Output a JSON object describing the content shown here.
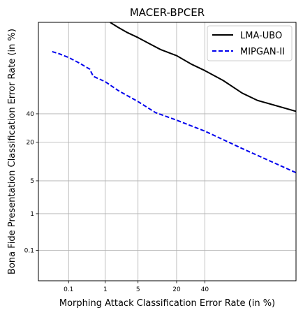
{
  "chart_data": {
    "type": "line",
    "title": "MACER-BPCER",
    "xlabel": "Morphing Attack Classification Error Rate (in %)",
    "ylabel": "Bona Fide Presentation Classification Error Rate (in %)",
    "x_scale": "probit",
    "y_scale": "probit",
    "x_ticks": [
      0.1,
      1,
      5,
      20,
      40
    ],
    "x_tick_labels": [
      "0.1",
      "1",
      "5",
      "20",
      "40"
    ],
    "y_ticks": [
      0.1,
      1,
      5,
      20,
      40
    ],
    "y_tick_labels": [
      "0.1",
      "1",
      "5",
      "20",
      "40"
    ],
    "xlim": [
      0.01,
      95
    ],
    "ylim": [
      0.01,
      95
    ],
    "grid": true,
    "legend_position": "top-right",
    "series": [
      {
        "name": "LMA-UBO",
        "color": "#000000",
        "style": "solid",
        "x": [
          1.3,
          2,
          3,
          5,
          8,
          12,
          20,
          30,
          40,
          55,
          70,
          80,
          95
        ],
        "y": [
          95,
          93.8,
          92.5,
          90.8,
          88.5,
          86,
          83,
          78,
          74,
          67,
          57,
          51,
          42
        ]
      },
      {
        "name": "MIPGAN-II",
        "color": "#0000ee",
        "style": "dashed",
        "x": [
          0.03,
          0.05,
          0.1,
          0.2,
          0.4,
          0.5,
          1,
          2,
          5,
          10,
          20,
          40,
          70,
          95
        ],
        "y": [
          85,
          84,
          82,
          79,
          75,
          70,
          66,
          59,
          50,
          41,
          35,
          27,
          16.5,
          7
        ]
      }
    ]
  }
}
